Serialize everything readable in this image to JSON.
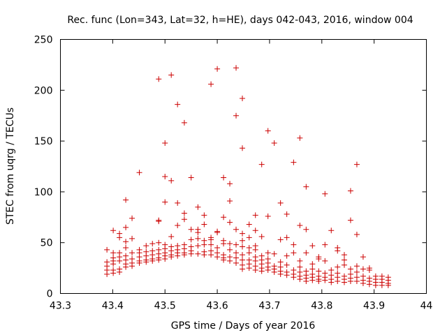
{
  "chart_data": {
    "type": "scatter",
    "title": "Rec. func (Lon=343, Lat=32, h=HE), days 042-043, 2016, window 004",
    "xlabel": "GPS time / Days of year 2016",
    "ylabel": "STEC from uqrg / TECUs",
    "xlim": [
      43.3,
      44.0
    ],
    "ylim": [
      0,
      250
    ],
    "x_ticks": [
      "43.3",
      "43.4",
      "43.5",
      "43.6",
      "43.7",
      "43.8",
      "43.9",
      "44"
    ],
    "y_ticks": [
      "0",
      "50",
      "100",
      "150",
      "200",
      "250"
    ],
    "grid": false,
    "marker": "+",
    "color": "#cc0000",
    "points": [
      [
        43.389,
        43
      ],
      [
        43.389,
        31
      ],
      [
        43.389,
        27
      ],
      [
        43.389,
        23
      ],
      [
        43.389,
        19
      ],
      [
        43.401,
        62
      ],
      [
        43.401,
        40
      ],
      [
        43.401,
        35
      ],
      [
        43.401,
        32
      ],
      [
        43.401,
        29
      ],
      [
        43.401,
        23
      ],
      [
        43.401,
        20
      ],
      [
        43.413,
        59
      ],
      [
        43.413,
        55
      ],
      [
        43.413,
        40
      ],
      [
        43.413,
        36
      ],
      [
        43.413,
        32
      ],
      [
        43.413,
        24
      ],
      [
        43.413,
        21
      ],
      [
        43.425,
        92
      ],
      [
        43.425,
        65
      ],
      [
        43.425,
        51
      ],
      [
        43.425,
        45
      ],
      [
        43.425,
        37
      ],
      [
        43.425,
        33
      ],
      [
        43.425,
        29
      ],
      [
        43.425,
        26
      ],
      [
        43.437,
        74
      ],
      [
        43.437,
        54
      ],
      [
        43.437,
        40
      ],
      [
        43.437,
        34
      ],
      [
        43.437,
        30
      ],
      [
        43.437,
        27
      ],
      [
        43.451,
        119
      ],
      [
        43.451,
        43
      ],
      [
        43.451,
        40
      ],
      [
        43.451,
        36
      ],
      [
        43.451,
        32
      ],
      [
        43.451,
        30
      ],
      [
        43.464,
        47
      ],
      [
        43.464,
        41
      ],
      [
        43.464,
        37
      ],
      [
        43.464,
        33
      ],
      [
        43.464,
        31
      ],
      [
        43.476,
        49
      ],
      [
        43.476,
        42
      ],
      [
        43.476,
        38
      ],
      [
        43.476,
        34
      ],
      [
        43.476,
        32
      ],
      [
        43.488,
        211
      ],
      [
        43.488,
        72
      ],
      [
        43.488,
        71
      ],
      [
        43.488,
        50
      ],
      [
        43.488,
        43
      ],
      [
        43.488,
        39
      ],
      [
        43.488,
        35
      ],
      [
        43.488,
        33
      ],
      [
        43.5,
        148
      ],
      [
        43.5,
        115
      ],
      [
        43.5,
        90
      ],
      [
        43.5,
        48
      ],
      [
        43.5,
        44
      ],
      [
        43.5,
        40
      ],
      [
        43.5,
        37
      ],
      [
        43.5,
        34
      ],
      [
        43.512,
        215
      ],
      [
        43.512,
        111
      ],
      [
        43.512,
        56
      ],
      [
        43.512,
        46
      ],
      [
        43.512,
        42
      ],
      [
        43.512,
        38
      ],
      [
        43.512,
        36
      ],
      [
        43.524,
        186
      ],
      [
        43.524,
        89
      ],
      [
        43.524,
        67
      ],
      [
        43.524,
        47
      ],
      [
        43.524,
        43
      ],
      [
        43.524,
        40
      ],
      [
        43.524,
        37
      ],
      [
        43.537,
        168
      ],
      [
        43.537,
        79
      ],
      [
        43.537,
        73
      ],
      [
        43.537,
        48
      ],
      [
        43.537,
        44
      ],
      [
        43.537,
        40
      ],
      [
        43.537,
        38
      ],
      [
        43.55,
        114
      ],
      [
        43.55,
        63
      ],
      [
        43.55,
        53
      ],
      [
        43.55,
        46
      ],
      [
        43.55,
        42
      ],
      [
        43.55,
        39
      ],
      [
        43.563,
        85
      ],
      [
        43.563,
        63
      ],
      [
        43.563,
        60
      ],
      [
        43.563,
        54
      ],
      [
        43.563,
        47
      ],
      [
        43.563,
        39
      ],
      [
        43.575,
        77
      ],
      [
        43.575,
        68
      ],
      [
        43.575,
        52
      ],
      [
        43.575,
        48
      ],
      [
        43.575,
        41
      ],
      [
        43.575,
        38
      ],
      [
        43.588,
        206
      ],
      [
        43.588,
        55
      ],
      [
        43.588,
        53
      ],
      [
        43.588,
        48
      ],
      [
        43.588,
        42
      ],
      [
        43.588,
        38
      ],
      [
        43.6,
        221
      ],
      [
        43.6,
        61
      ],
      [
        43.6,
        60
      ],
      [
        43.6,
        45
      ],
      [
        43.6,
        40
      ],
      [
        43.6,
        36
      ],
      [
        43.612,
        114
      ],
      [
        43.612,
        75
      ],
      [
        43.612,
        52
      ],
      [
        43.612,
        49
      ],
      [
        43.612,
        38
      ],
      [
        43.612,
        35
      ],
      [
        43.612,
        33
      ],
      [
        43.624,
        108
      ],
      [
        43.624,
        91
      ],
      [
        43.624,
        70
      ],
      [
        43.624,
        49
      ],
      [
        43.624,
        43
      ],
      [
        43.624,
        36
      ],
      [
        43.624,
        32
      ],
      [
        43.636,
        222
      ],
      [
        43.636,
        175
      ],
      [
        43.636,
        63
      ],
      [
        43.636,
        48
      ],
      [
        43.636,
        40
      ],
      [
        43.636,
        35
      ],
      [
        43.636,
        30
      ],
      [
        43.648,
        192
      ],
      [
        43.648,
        143
      ],
      [
        43.648,
        59
      ],
      [
        43.648,
        52
      ],
      [
        43.648,
        46
      ],
      [
        43.648,
        38
      ],
      [
        43.648,
        33
      ],
      [
        43.648,
        28
      ],
      [
        43.648,
        24
      ],
      [
        43.661,
        68
      ],
      [
        43.661,
        55
      ],
      [
        43.661,
        45
      ],
      [
        43.661,
        40
      ],
      [
        43.661,
        33
      ],
      [
        43.661,
        29
      ],
      [
        43.661,
        25
      ],
      [
        43.673,
        77
      ],
      [
        43.673,
        62
      ],
      [
        43.673,
        47
      ],
      [
        43.673,
        43
      ],
      [
        43.673,
        36
      ],
      [
        43.673,
        32
      ],
      [
        43.673,
        27
      ],
      [
        43.673,
        23
      ],
      [
        43.685,
        127
      ],
      [
        43.685,
        56
      ],
      [
        43.685,
        37
      ],
      [
        43.685,
        33
      ],
      [
        43.685,
        29
      ],
      [
        43.685,
        25
      ],
      [
        43.685,
        22
      ],
      [
        43.697,
        160
      ],
      [
        43.697,
        76
      ],
      [
        43.697,
        40
      ],
      [
        43.697,
        34
      ],
      [
        43.697,
        30
      ],
      [
        43.697,
        26
      ],
      [
        43.697,
        23
      ],
      [
        43.709,
        148
      ],
      [
        43.709,
        39
      ],
      [
        43.709,
        27
      ],
      [
        43.709,
        24
      ],
      [
        43.709,
        21
      ],
      [
        43.721,
        89
      ],
      [
        43.721,
        53
      ],
      [
        43.721,
        31
      ],
      [
        43.721,
        26
      ],
      [
        43.721,
        22
      ],
      [
        43.721,
        19
      ],
      [
        43.733,
        78
      ],
      [
        43.733,
        55
      ],
      [
        43.733,
        37
      ],
      [
        43.733,
        28
      ],
      [
        43.733,
        21
      ],
      [
        43.733,
        18
      ],
      [
        43.746,
        129
      ],
      [
        43.746,
        48
      ],
      [
        43.746,
        40
      ],
      [
        43.746,
        23
      ],
      [
        43.746,
        19
      ],
      [
        43.746,
        16
      ],
      [
        43.758,
        153
      ],
      [
        43.758,
        67
      ],
      [
        43.758,
        32
      ],
      [
        43.758,
        26
      ],
      [
        43.758,
        21
      ],
      [
        43.758,
        17
      ],
      [
        43.758,
        14
      ],
      [
        43.77,
        105
      ],
      [
        43.77,
        63
      ],
      [
        43.77,
        40
      ],
      [
        43.77,
        22
      ],
      [
        43.77,
        18
      ],
      [
        43.77,
        15
      ],
      [
        43.77,
        12
      ],
      [
        43.782,
        47
      ],
      [
        43.782,
        29
      ],
      [
        43.782,
        24
      ],
      [
        43.782,
        19
      ],
      [
        43.782,
        16
      ],
      [
        43.782,
        13
      ],
      [
        43.794,
        36
      ],
      [
        43.794,
        34
      ],
      [
        43.794,
        22
      ],
      [
        43.794,
        17
      ],
      [
        43.794,
        14
      ],
      [
        43.794,
        12
      ],
      [
        43.806,
        98
      ],
      [
        43.806,
        48
      ],
      [
        43.806,
        32
      ],
      [
        43.806,
        20
      ],
      [
        43.806,
        16
      ],
      [
        43.806,
        13
      ],
      [
        43.818,
        62
      ],
      [
        43.818,
        23
      ],
      [
        43.818,
        18
      ],
      [
        43.818,
        14
      ],
      [
        43.818,
        11
      ],
      [
        43.83,
        45
      ],
      [
        43.83,
        42
      ],
      [
        43.83,
        26
      ],
      [
        43.83,
        20
      ],
      [
        43.83,
        16
      ],
      [
        43.83,
        12
      ],
      [
        43.843,
        38
      ],
      [
        43.843,
        33
      ],
      [
        43.843,
        28
      ],
      [
        43.843,
        17
      ],
      [
        43.843,
        14
      ],
      [
        43.843,
        11
      ],
      [
        43.855,
        101
      ],
      [
        43.855,
        72
      ],
      [
        43.855,
        24
      ],
      [
        43.855,
        19
      ],
      [
        43.855,
        15
      ],
      [
        43.855,
        12
      ],
      [
        43.867,
        127
      ],
      [
        43.867,
        58
      ],
      [
        43.867,
        27
      ],
      [
        43.867,
        21
      ],
      [
        43.867,
        16
      ],
      [
        43.867,
        12
      ],
      [
        43.879,
        36
      ],
      [
        43.879,
        24
      ],
      [
        43.879,
        17
      ],
      [
        43.879,
        13
      ],
      [
        43.879,
        10
      ],
      [
        43.891,
        25
      ],
      [
        43.891,
        23
      ],
      [
        43.891,
        15
      ],
      [
        43.891,
        12
      ],
      [
        43.891,
        9
      ],
      [
        43.903,
        17
      ],
      [
        43.903,
        14
      ],
      [
        43.903,
        11
      ],
      [
        43.903,
        8
      ],
      [
        43.915,
        17
      ],
      [
        43.915,
        14
      ],
      [
        43.915,
        11
      ],
      [
        43.915,
        8
      ],
      [
        43.927,
        16
      ],
      [
        43.927,
        13
      ],
      [
        43.927,
        10
      ],
      [
        43.927,
        8
      ]
    ]
  }
}
